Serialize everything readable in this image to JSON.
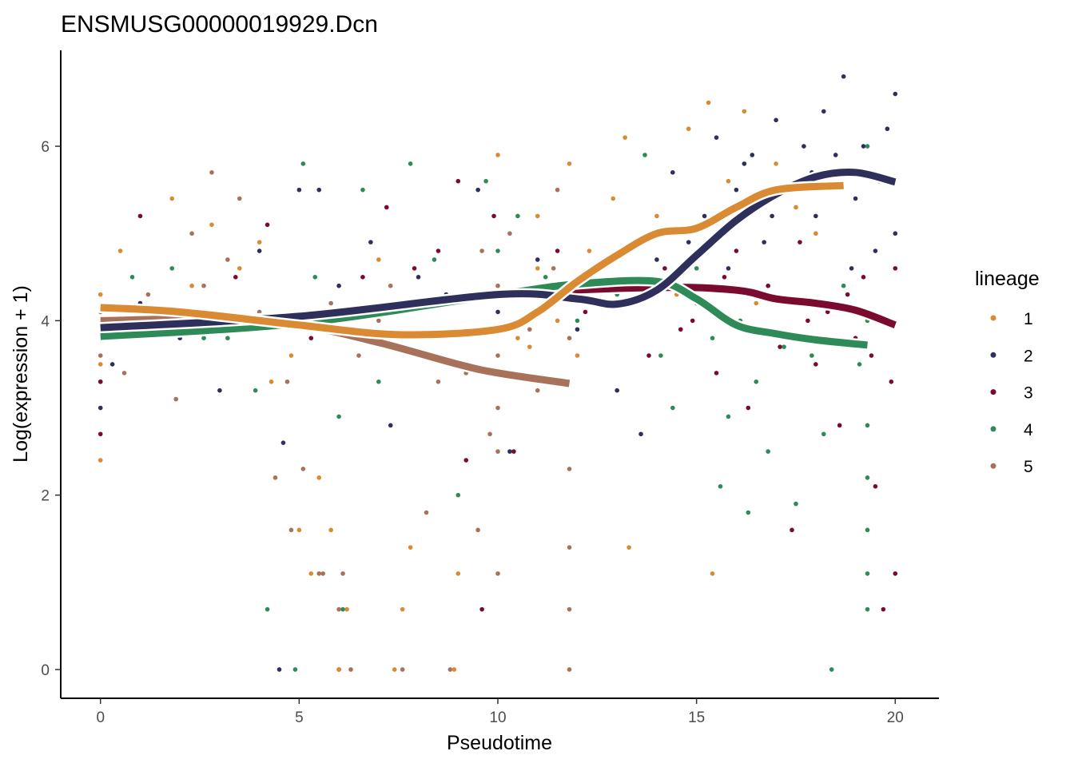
{
  "chart_data": {
    "type": "scatter",
    "title": "ENSMUSG00000019929.Dcn",
    "xlabel": "Pseudotime",
    "ylabel": "Log(expression + 1)",
    "xlim": [
      -1,
      21.1
    ],
    "ylim": [
      -0.33,
      7.1
    ],
    "xticks": [
      0,
      5,
      10,
      15,
      20
    ],
    "yticks": [
      0,
      2,
      4,
      6
    ],
    "grid": false,
    "legend": {
      "title": "lineage",
      "placement": "right"
    },
    "series": [
      {
        "name": "1",
        "color": "#D98A32",
        "points": [
          [
            0,
            4.3
          ],
          [
            0,
            3.5
          ],
          [
            0,
            2.4
          ],
          [
            0.5,
            4.8
          ],
          [
            1,
            3.9
          ],
          [
            1.8,
            5.4
          ],
          [
            2.3,
            4.4
          ],
          [
            2.8,
            5.1
          ],
          [
            3.5,
            4.6
          ],
          [
            4,
            4.9
          ],
          [
            4.3,
            3.3
          ],
          [
            4.8,
            3.6
          ],
          [
            5,
            1.6
          ],
          [
            5.3,
            1.1
          ],
          [
            5.5,
            2.2
          ],
          [
            5.8,
            1.6
          ],
          [
            6,
            0
          ],
          [
            6.2,
            0.69
          ],
          [
            7,
            4.7
          ],
          [
            7.4,
            0
          ],
          [
            7.6,
            0.69
          ],
          [
            7.8,
            1.4
          ],
          [
            8.3,
            4.2
          ],
          [
            8.9,
            0
          ],
          [
            9,
            1.1
          ],
          [
            9.5,
            4.3
          ],
          [
            10,
            5.9
          ],
          [
            10.5,
            3.8
          ],
          [
            11,
            5.2
          ],
          [
            11.5,
            4.0
          ],
          [
            11.8,
            5.8
          ],
          [
            12,
            3.6
          ],
          [
            12.3,
            4.8
          ],
          [
            12.9,
            5.4
          ],
          [
            13.2,
            6.1
          ],
          [
            13.3,
            1.4
          ],
          [
            14,
            5.2
          ],
          [
            14.5,
            4.3
          ],
          [
            14.8,
            6.2
          ],
          [
            15.3,
            6.5
          ],
          [
            15.4,
            1.1
          ],
          [
            15.8,
            5.6
          ],
          [
            16.2,
            6.4
          ],
          [
            16.5,
            4.2
          ],
          [
            17,
            5.8
          ],
          [
            17.5,
            5.3
          ],
          [
            18,
            5.0
          ],
          [
            18.5,
            5.7
          ],
          [
            11,
            4.6
          ],
          [
            10.8,
            3.7
          ]
        ],
        "curve": [
          [
            0,
            4.15
          ],
          [
            2,
            4.1
          ],
          [
            5,
            3.95
          ],
          [
            7.5,
            3.84
          ],
          [
            10,
            3.9
          ],
          [
            11,
            4.1
          ],
          [
            12,
            4.45
          ],
          [
            13,
            4.75
          ],
          [
            14,
            5.0
          ],
          [
            15,
            5.06
          ],
          [
            16,
            5.3
          ],
          [
            17,
            5.5
          ],
          [
            18.7,
            5.55
          ]
        ]
      },
      {
        "name": "2",
        "color": "#2E2F5B",
        "points": [
          [
            0,
            3.0
          ],
          [
            0.3,
            3.5
          ],
          [
            1,
            4.2
          ],
          [
            2,
            3.8
          ],
          [
            3,
            3.2
          ],
          [
            4,
            4.8
          ],
          [
            4.5,
            0
          ],
          [
            4.6,
            2.6
          ],
          [
            5,
            5.5
          ],
          [
            5.5,
            5.5
          ],
          [
            6,
            4.4
          ],
          [
            6.8,
            4.9
          ],
          [
            7.3,
            2.8
          ],
          [
            8,
            4.5
          ],
          [
            8.7,
            4.3
          ],
          [
            9.5,
            5.5
          ],
          [
            10,
            4.1
          ],
          [
            10.3,
            2.5
          ],
          [
            11,
            4.7
          ],
          [
            12,
            3.9
          ],
          [
            12.5,
            4.4
          ],
          [
            13,
            3.2
          ],
          [
            13.6,
            2.7
          ],
          [
            14,
            4.7
          ],
          [
            14.4,
            5.7
          ],
          [
            14.8,
            4.9
          ],
          [
            15.2,
            5.2
          ],
          [
            15.5,
            6.1
          ],
          [
            15.8,
            4.6
          ],
          [
            16,
            5.5
          ],
          [
            16.4,
            5.9
          ],
          [
            16.7,
            4.9
          ],
          [
            17,
            6.3
          ],
          [
            17.4,
            5.5
          ],
          [
            17.7,
            6.0
          ],
          [
            18,
            5.2
          ],
          [
            18.2,
            6.4
          ],
          [
            18.5,
            5.9
          ],
          [
            18.7,
            6.8
          ],
          [
            19,
            5.4
          ],
          [
            19.2,
            6.0
          ],
          [
            19.5,
            4.8
          ],
          [
            19.8,
            6.2
          ],
          [
            20,
            6.6
          ],
          [
            20,
            5.0
          ],
          [
            19.6,
            5.6
          ],
          [
            18.9,
            4.6
          ],
          [
            17.9,
            5.7
          ],
          [
            16.9,
            5.2
          ],
          [
            16.2,
            5.8
          ]
        ],
        "curve": [
          [
            0,
            3.92
          ],
          [
            5,
            4.05
          ],
          [
            10,
            4.3
          ],
          [
            12,
            4.25
          ],
          [
            13,
            4.19
          ],
          [
            14,
            4.35
          ],
          [
            15,
            4.75
          ],
          [
            16,
            5.15
          ],
          [
            17,
            5.45
          ],
          [
            18,
            5.65
          ],
          [
            19,
            5.7
          ],
          [
            20,
            5.59
          ]
        ]
      },
      {
        "name": "3",
        "color": "#7A0A2E",
        "points": [
          [
            0,
            2.7
          ],
          [
            0,
            3.3
          ],
          [
            1,
            5.2
          ],
          [
            1.7,
            4.1
          ],
          [
            2.8,
            3.9
          ],
          [
            3.4,
            4.5
          ],
          [
            4.2,
            5.1
          ],
          [
            4.9,
            4.0
          ],
          [
            5.3,
            3.8
          ],
          [
            6,
            0
          ],
          [
            6.6,
            4.5
          ],
          [
            7.2,
            5.3
          ],
          [
            7.9,
            4.6
          ],
          [
            8.5,
            4.8
          ],
          [
            9,
            5.6
          ],
          [
            9.2,
            2.4
          ],
          [
            9.6,
            0.69
          ],
          [
            9.9,
            5.2
          ],
          [
            10.4,
            2.5
          ],
          [
            11,
            4.3
          ],
          [
            11.5,
            4.8
          ],
          [
            12.2,
            4.1
          ],
          [
            13.4,
            4.2
          ],
          [
            13.8,
            3.6
          ],
          [
            14.2,
            4.6
          ],
          [
            14.6,
            3.9
          ],
          [
            15,
            4.2
          ],
          [
            15.5,
            3.4
          ],
          [
            16,
            4.8
          ],
          [
            16.3,
            3.0
          ],
          [
            16.8,
            4.4
          ],
          [
            17.1,
            3.7
          ],
          [
            17.4,
            1.6
          ],
          [
            17.6,
            4.9
          ],
          [
            18,
            3.5
          ],
          [
            18.3,
            4.1
          ],
          [
            18.6,
            2.8
          ],
          [
            19,
            3.8
          ],
          [
            19.2,
            4.5
          ],
          [
            19.5,
            2.1
          ],
          [
            19.7,
            0.69
          ],
          [
            19.9,
            3.3
          ],
          [
            20,
            1.1
          ],
          [
            20,
            4.6
          ],
          [
            19.4,
            3.6
          ],
          [
            18.8,
            4.3
          ],
          [
            17.8,
            4.0
          ],
          [
            16.6,
            3.9
          ],
          [
            15.7,
            4.5
          ],
          [
            14.9,
            4.0
          ]
        ],
        "curve": [
          [
            0,
            3.95
          ],
          [
            5,
            4.05
          ],
          [
            10,
            4.3
          ],
          [
            14,
            4.38
          ],
          [
            16,
            4.35
          ],
          [
            17,
            4.25
          ],
          [
            18,
            4.2
          ],
          [
            19,
            4.12
          ],
          [
            20,
            3.95
          ]
        ]
      },
      {
        "name": "4",
        "color": "#2E8B57",
        "points": [
          [
            0,
            3.3
          ],
          [
            0.8,
            4.5
          ],
          [
            1.8,
            4.6
          ],
          [
            2.6,
            3.8
          ],
          [
            3.2,
            3.8
          ],
          [
            3.9,
            3.2
          ],
          [
            4.2,
            0.69
          ],
          [
            4.9,
            0
          ],
          [
            5.1,
            5.8
          ],
          [
            5.4,
            4.5
          ],
          [
            6,
            2.9
          ],
          [
            6.1,
            0.69
          ],
          [
            6.6,
            5.5
          ],
          [
            7,
            3.3
          ],
          [
            7.8,
            5.8
          ],
          [
            8.4,
            4.7
          ],
          [
            9,
            2.0
          ],
          [
            9.7,
            5.6
          ],
          [
            10,
            4.8
          ],
          [
            10.5,
            5.2
          ],
          [
            11.2,
            4.5
          ],
          [
            12,
            4.0
          ],
          [
            13,
            4.3
          ],
          [
            13.7,
            5.9
          ],
          [
            14.1,
            3.6
          ],
          [
            14.4,
            3.0
          ],
          [
            15,
            4.6
          ],
          [
            15.4,
            3.8
          ],
          [
            15.8,
            2.9
          ],
          [
            16.1,
            4.0
          ],
          [
            16.5,
            3.3
          ],
          [
            16.8,
            2.5
          ],
          [
            17.2,
            3.7
          ],
          [
            17.5,
            1.9
          ],
          [
            17.9,
            3.6
          ],
          [
            18.2,
            2.7
          ],
          [
            18.4,
            0
          ],
          [
            18.7,
            4.4
          ],
          [
            19.1,
            3.5
          ],
          [
            19.3,
            2.2
          ],
          [
            19.3,
            1.6
          ],
          [
            19.3,
            1.1
          ],
          [
            19.3,
            0.69
          ],
          [
            19.3,
            2.8
          ],
          [
            19.3,
            4.0
          ],
          [
            19.3,
            6.0
          ],
          [
            16.3,
            1.8
          ],
          [
            15.6,
            2.1
          ],
          [
            14.7,
            4.3
          ],
          [
            12.6,
            4.6
          ]
        ],
        "curve": [
          [
            0,
            3.82
          ],
          [
            5,
            3.97
          ],
          [
            10,
            4.3
          ],
          [
            12,
            4.42
          ],
          [
            14,
            4.45
          ],
          [
            15,
            4.25
          ],
          [
            16,
            3.95
          ],
          [
            17,
            3.85
          ],
          [
            18,
            3.78
          ],
          [
            19.3,
            3.72
          ]
        ]
      },
      {
        "name": "5",
        "color": "#A8725A",
        "points": [
          [
            0,
            4.1
          ],
          [
            0,
            3.6
          ],
          [
            0.6,
            3.4
          ],
          [
            1.2,
            4.3
          ],
          [
            1.9,
            3.1
          ],
          [
            2.3,
            5.0
          ],
          [
            2.8,
            5.7
          ],
          [
            3.5,
            5.4
          ],
          [
            4,
            4.1
          ],
          [
            4.4,
            2.2
          ],
          [
            4.8,
            1.6
          ],
          [
            5.1,
            2.3
          ],
          [
            5.6,
            1.1
          ],
          [
            6,
            0.69
          ],
          [
            6.1,
            1.1
          ],
          [
            6.5,
            3.6
          ],
          [
            7,
            4.0
          ],
          [
            7.6,
            0
          ],
          [
            8.2,
            1.8
          ],
          [
            8.8,
            0
          ],
          [
            9.2,
            3.4
          ],
          [
            9.5,
            1.6
          ],
          [
            10,
            3.0
          ],
          [
            10,
            1.1
          ],
          [
            10,
            2.5
          ],
          [
            10,
            3.6
          ],
          [
            10,
            4.4
          ],
          [
            10.3,
            5.0
          ],
          [
            10.8,
            3.9
          ],
          [
            11,
            3.2
          ],
          [
            11.4,
            4.6
          ],
          [
            11.8,
            2.3
          ],
          [
            11.8,
            1.4
          ],
          [
            11.8,
            0.69
          ],
          [
            11.8,
            0
          ],
          [
            11.8,
            3.8
          ],
          [
            11.5,
            5.5
          ],
          [
            9.6,
            4.8
          ],
          [
            8.5,
            3.3
          ],
          [
            7.3,
            4.4
          ],
          [
            5.8,
            4.2
          ],
          [
            3.2,
            4.7
          ],
          [
            1.5,
            3.9
          ],
          [
            0.3,
            3.9
          ],
          [
            10.2,
            3.4
          ],
          [
            9.8,
            2.7
          ],
          [
            6.3,
            0
          ],
          [
            5.5,
            1.1
          ],
          [
            4.7,
            3.3
          ],
          [
            2.6,
            4.4
          ]
        ],
        "curve": [
          [
            0,
            4.0
          ],
          [
            3,
            4.02
          ],
          [
            5,
            3.95
          ],
          [
            7,
            3.75
          ],
          [
            9,
            3.5
          ],
          [
            10,
            3.4
          ],
          [
            11.8,
            3.28
          ]
        ]
      }
    ]
  }
}
